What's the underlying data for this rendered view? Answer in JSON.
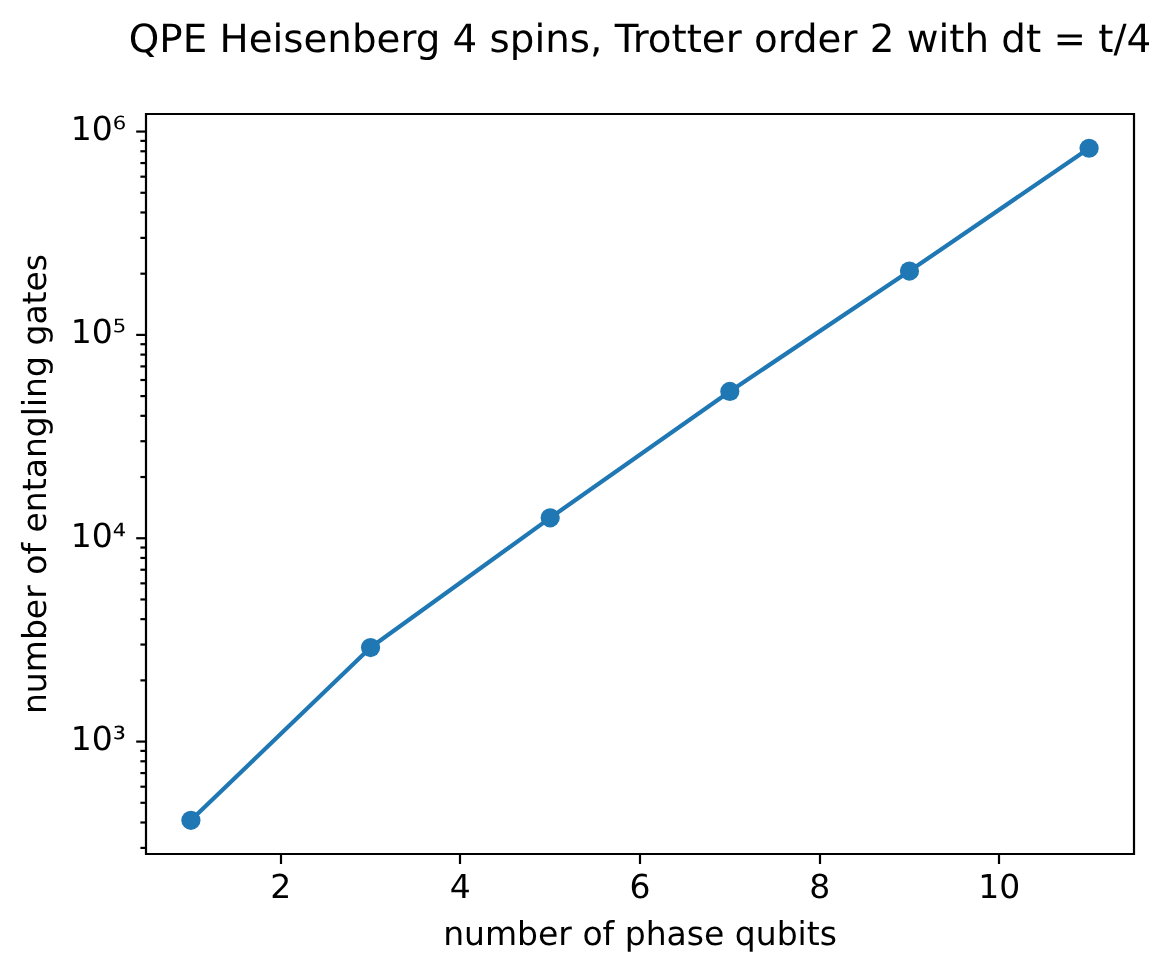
{
  "chart_data": {
    "type": "line",
    "title": "QPE Heisenberg 4 spins, Trotter order 2 with dt = t/4",
    "xlabel": "number of phase qubits",
    "ylabel": "number of entangling gates",
    "x": [
      1,
      3,
      5,
      7,
      9,
      11
    ],
    "values": [
      410,
      2900,
      12600,
      52700,
      206000,
      828000
    ],
    "color": "#1f77b4",
    "marker": "circle",
    "line_style": "solid",
    "log": "y",
    "xlim": [
      0.5,
      11.5
    ],
    "xticks": [
      2,
      4,
      6,
      8,
      10
    ],
    "ylim": [
      280,
      1220000
    ],
    "yticks": [
      {
        "value": 300,
        "label": null
      },
      {
        "value": 400,
        "label": null
      },
      {
        "value": 500,
        "label": null
      },
      {
        "value": 600,
        "label": null
      },
      {
        "value": 700,
        "label": null
      },
      {
        "value": 800,
        "label": null
      },
      {
        "value": 900,
        "label": null
      },
      {
        "value": 1000,
        "label": "10³"
      },
      {
        "value": 2000,
        "label": null
      },
      {
        "value": 3000,
        "label": null
      },
      {
        "value": 4000,
        "label": null
      },
      {
        "value": 5000,
        "label": null
      },
      {
        "value": 6000,
        "label": null
      },
      {
        "value": 7000,
        "label": null
      },
      {
        "value": 8000,
        "label": null
      },
      {
        "value": 9000,
        "label": null
      },
      {
        "value": 10000,
        "label": "10⁴"
      },
      {
        "value": 20000,
        "label": null
      },
      {
        "value": 30000,
        "label": null
      },
      {
        "value": 40000,
        "label": null
      },
      {
        "value": 50000,
        "label": null
      },
      {
        "value": 60000,
        "label": null
      },
      {
        "value": 70000,
        "label": null
      },
      {
        "value": 80000,
        "label": null
      },
      {
        "value": 90000,
        "label": null
      },
      {
        "value": 100000,
        "label": "10⁵"
      },
      {
        "value": 200000,
        "label": null
      },
      {
        "value": 300000,
        "label": null
      },
      {
        "value": 400000,
        "label": null
      },
      {
        "value": 500000,
        "label": null
      },
      {
        "value": 600000,
        "label": null
      },
      {
        "value": 700000,
        "label": null
      },
      {
        "value": 800000,
        "label": null
      },
      {
        "value": 900000,
        "label": null
      },
      {
        "value": 1000000,
        "label": "10⁶"
      }
    ]
  }
}
